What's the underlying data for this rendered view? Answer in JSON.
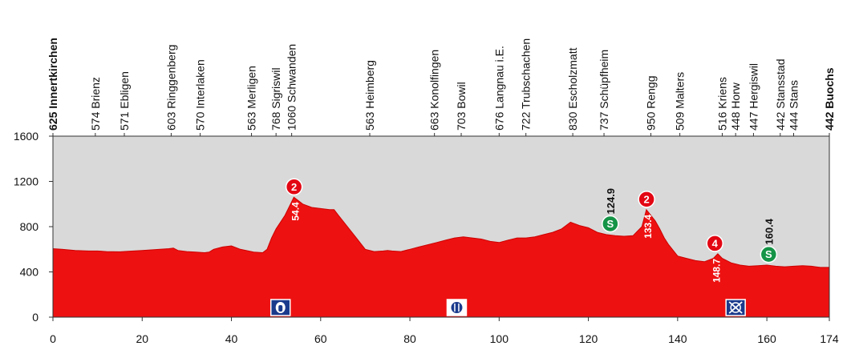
{
  "chart_data": {
    "type": "area",
    "title": "",
    "xlabel": "",
    "ylabel": "",
    "xlim": [
      0,
      174
    ],
    "ylim": [
      0,
      1600
    ],
    "x_ticks": [
      "0",
      "20",
      "40",
      "60",
      "80",
      "100",
      "120",
      "140",
      "160",
      "174"
    ],
    "y_ticks": [
      "0",
      "400",
      "800",
      "1200",
      "1600"
    ],
    "grid": false,
    "colors": {
      "fill": "#ee1111",
      "stroke": "#cc0000",
      "background": "#d9d9d9",
      "climb": "#e30613",
      "sprint": "#159447",
      "icon_bg": "#1a3a8c"
    },
    "elevation_profile": {
      "x": [
        0,
        2,
        5,
        8,
        10,
        12,
        15,
        18,
        20,
        22,
        24,
        26,
        27,
        28,
        30,
        32,
        34,
        35,
        36,
        38,
        40,
        42,
        45,
        47,
        48,
        49,
        50,
        52,
        54,
        56,
        58,
        60,
        62,
        63,
        64,
        66,
        68,
        70,
        72,
        74,
        75,
        76,
        78,
        80,
        82,
        84,
        86,
        88,
        90,
        92,
        94,
        96,
        98,
        100,
        102,
        104,
        106,
        108,
        110,
        112,
        114,
        116,
        118,
        120,
        122,
        124,
        126,
        128,
        130,
        132,
        133,
        134,
        135,
        136,
        137,
        138,
        140,
        142,
        144,
        146,
        148,
        149,
        150,
        152,
        154,
        156,
        158,
        160,
        162,
        164,
        166,
        168,
        170,
        172,
        174
      ],
      "y": [
        605,
        600,
        590,
        585,
        585,
        580,
        578,
        585,
        590,
        595,
        600,
        605,
        610,
        590,
        580,
        575,
        570,
        575,
        600,
        620,
        630,
        600,
        575,
        570,
        600,
        700,
        780,
        900,
        1060,
        1000,
        970,
        960,
        950,
        950,
        900,
        800,
        700,
        600,
        580,
        585,
        590,
        585,
        580,
        600,
        620,
        640,
        660,
        680,
        700,
        710,
        700,
        690,
        670,
        660,
        680,
        700,
        700,
        710,
        730,
        750,
        780,
        840,
        810,
        790,
        750,
        730,
        720,
        715,
        720,
        800,
        950,
        900,
        850,
        780,
        700,
        640,
        540,
        520,
        500,
        490,
        520,
        560,
        520,
        480,
        460,
        450,
        455,
        460,
        450,
        445,
        450,
        455,
        450,
        440,
        440
      ]
    },
    "places": [
      {
        "label": "625 Innertkirchen",
        "x": 0,
        "bold": true
      },
      {
        "label": "574 Brienz",
        "x": 9.5
      },
      {
        "label": "571 Ebligen",
        "x": 16
      },
      {
        "label": "603 Ringgenberg",
        "x": 26.5
      },
      {
        "label": "570 Interlaken",
        "x": 33
      },
      {
        "label": "563 Merligen",
        "x": 44.5
      },
      {
        "label": "768 Sigriswil",
        "x": 50
      },
      {
        "label": "1060 Schwanden",
        "x": 53.5
      },
      {
        "label": "563 Heimberg",
        "x": 71
      },
      {
        "label": "663 Konolfingen",
        "x": 85.5
      },
      {
        "label": "703 Bowil",
        "x": 91.5
      },
      {
        "label": "676 Langnau i.E.",
        "x": 100
      },
      {
        "label": "722 Trubschachen",
        "x": 106
      },
      {
        "label": "830 Escholzmatt",
        "x": 116.5
      },
      {
        "label": "737 Schüpfheim",
        "x": 123.5
      },
      {
        "label": "950 Rengg",
        "x": 134
      },
      {
        "label": "509 Malters",
        "x": 140.5
      },
      {
        "label": "516 Kriens",
        "x": 150
      },
      {
        "label": "448 Horw",
        "x": 153
      },
      {
        "label": "447 Hergiswil",
        "x": 157
      },
      {
        "label": "442 Stansstad",
        "x": 163
      },
      {
        "label": "444 Stans",
        "x": 166
      },
      {
        "label": "442 Buochs",
        "x": 174,
        "bold": true
      }
    ],
    "climbs": [
      {
        "category": "2",
        "km": "54.4",
        "x": 54.4,
        "y": 1060
      },
      {
        "category": "2",
        "km": "133.4",
        "x": 133.4,
        "y": 950
      },
      {
        "category": "4",
        "km": "148.7",
        "x": 148.7,
        "y": 560
      }
    ],
    "sprints": [
      {
        "symbol": "S",
        "km": "124.9",
        "x": 124.9,
        "y": 825
      },
      {
        "symbol": "S",
        "km": "160.4",
        "x": 160.4,
        "y": 555
      }
    ],
    "icons": [
      {
        "name": "water-bottle-icon",
        "x": 51
      },
      {
        "name": "feed-zone-icon",
        "x": 90.5
      },
      {
        "name": "no-litter-zone-icon",
        "x": 153
      }
    ]
  }
}
